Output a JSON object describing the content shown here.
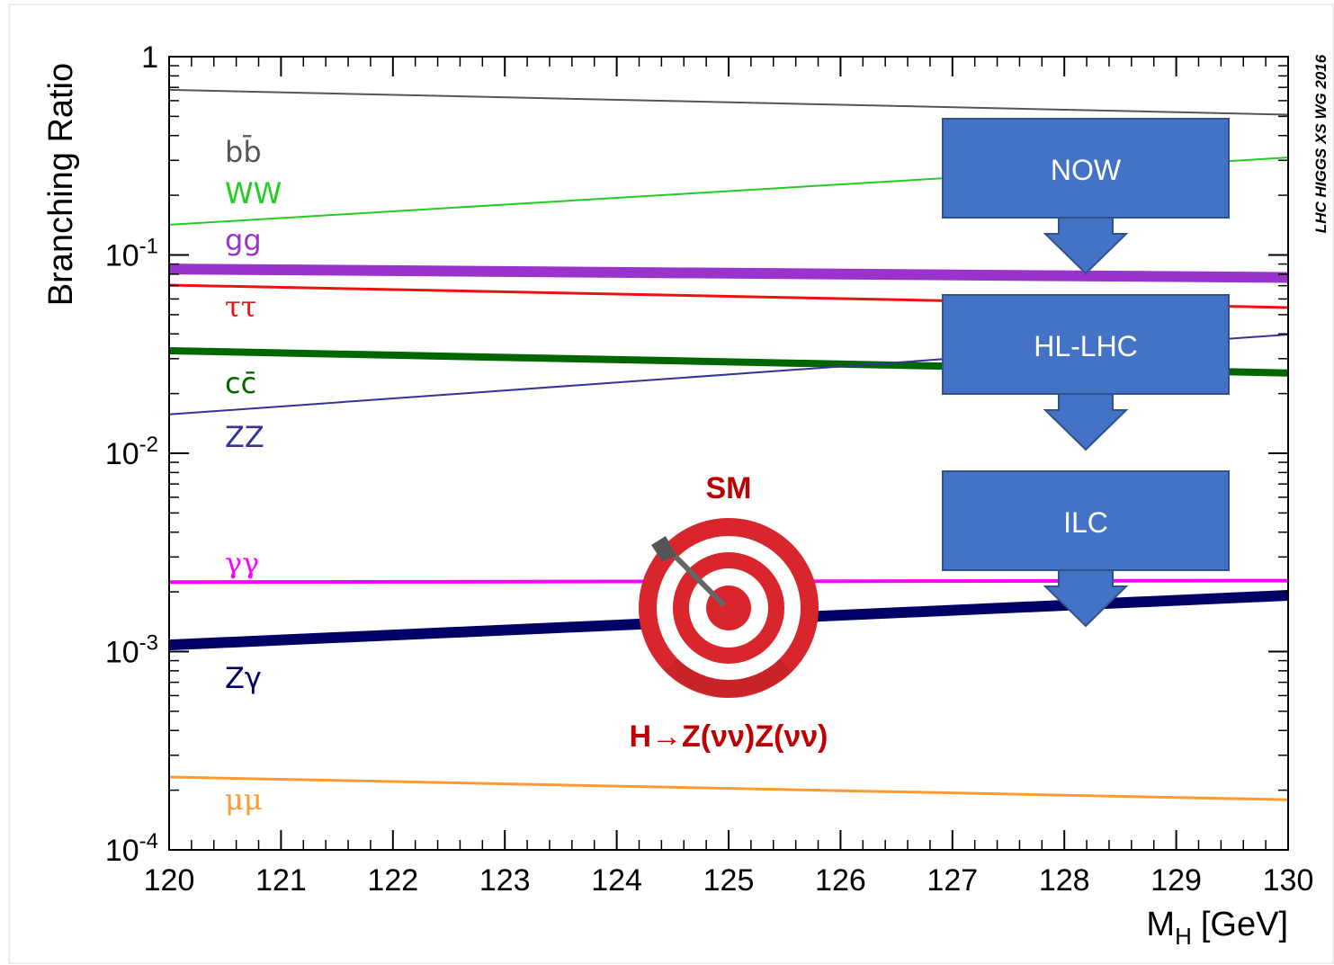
{
  "chart_data": {
    "type": "line",
    "y_label": "Branching Ratio",
    "x_label": {
      "main": "M",
      "sub": "H",
      "unit": "[GeV]"
    },
    "credit": "LHC HIGGS XS WG 2016",
    "x": [
      120,
      130
    ],
    "xlim": [
      120,
      130
    ],
    "xticks": [
      120,
      121,
      122,
      123,
      124,
      125,
      126,
      127,
      128,
      129,
      130
    ],
    "ylim": [
      0.0001,
      1
    ],
    "ylog": true,
    "yticks": [
      {
        "value": 0.0001,
        "label": "10-4"
      },
      {
        "value": 0.001,
        "label": "10-3"
      },
      {
        "value": 0.01,
        "label": "10-2"
      },
      {
        "value": 0.1,
        "label": "10-1"
      },
      1
    ],
    "series": [
      {
        "name": "bb̄",
        "color": "#555555",
        "width": 2,
        "values": [
          0.68,
          0.51
        ]
      },
      {
        "name": "WW",
        "color": "#22cc22",
        "width": 2,
        "values": [
          0.142,
          0.31
        ]
      },
      {
        "name": "gg",
        "color": "#9933cc",
        "width": 12,
        "values": [
          0.085,
          0.077
        ]
      },
      {
        "name": "ττ",
        "color": "#ee1111",
        "width": 3,
        "values": [
          0.0705,
          0.0543
        ]
      },
      {
        "name": "cc̄",
        "color": "#006600",
        "width": 8,
        "values": [
          0.0329,
          0.0254
        ]
      },
      {
        "name": "ZZ",
        "color": "#333399",
        "width": 2,
        "values": [
          0.0157,
          0.0397
        ]
      },
      {
        "name": "γγ",
        "color": "#ff00ff",
        "width": 4,
        "values": [
          0.00224,
          0.00228
        ]
      },
      {
        "name": "Zγ",
        "color": "#000066",
        "width": 12,
        "values": [
          0.00108,
          0.00192
        ]
      },
      {
        "name": "μμ",
        "color": "#ff9933",
        "width": 3,
        "values": [
          0.000233,
          0.000179
        ]
      }
    ],
    "annotations": {
      "stages": [
        "NOW",
        "HL-LHC",
        "ILC"
      ],
      "target": "SM",
      "channel": "H→Z(νν)Z(νν)"
    }
  }
}
